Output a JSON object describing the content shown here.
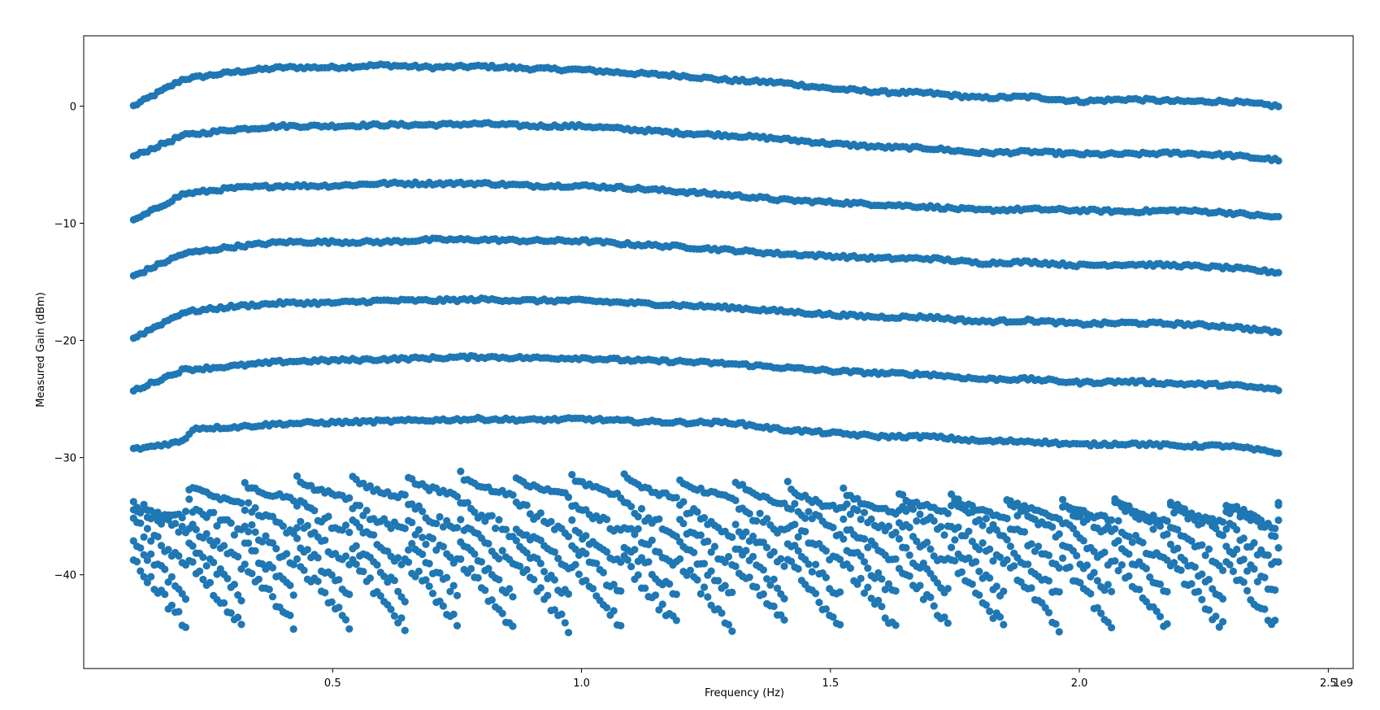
{
  "chart_data": {
    "type": "scatter",
    "title": "",
    "xlabel": "Frequency (Hz)",
    "ylabel": "Measured Gain (dBm)",
    "x_offset_label": "1e9",
    "xlim": [
      0.0,
      2.55
    ],
    "ylim": [
      -48.0,
      6.0
    ],
    "xticks": [
      0.5,
      1.0,
      1.5,
      2.0,
      2.5
    ],
    "xtick_labels": [
      "0.5",
      "1.0",
      "1.5",
      "2.0",
      "2.5"
    ],
    "yticks": [
      0,
      -10,
      -20,
      -30,
      -40
    ],
    "ytick_labels": [
      "0",
      "−10",
      "−20",
      "−30",
      "−40"
    ],
    "marker_color": "#1f77b4",
    "grid": false,
    "legend": "none",
    "x_range_ghz": [
      0.1,
      2.4
    ],
    "series": [
      {
        "values": [
          [
            0.1,
            0.0
          ],
          [
            0.2,
            2.3
          ],
          [
            0.3,
            2.9
          ],
          [
            0.4,
            3.3
          ],
          [
            0.5,
            3.3
          ],
          [
            0.6,
            3.5
          ],
          [
            0.7,
            3.3
          ],
          [
            0.8,
            3.4
          ],
          [
            0.9,
            3.2
          ],
          [
            1.0,
            3.1
          ],
          [
            1.1,
            2.8
          ],
          [
            1.2,
            2.6
          ],
          [
            1.3,
            2.2
          ],
          [
            1.4,
            2.0
          ],
          [
            1.5,
            1.5
          ],
          [
            1.6,
            1.2
          ],
          [
            1.7,
            1.1
          ],
          [
            1.8,
            0.7
          ],
          [
            1.9,
            0.8
          ],
          [
            2.0,
            0.4
          ],
          [
            2.1,
            0.6
          ],
          [
            2.2,
            0.4
          ],
          [
            2.3,
            0.4
          ],
          [
            2.4,
            0.0
          ]
        ]
      },
      {
        "values": [
          [
            0.1,
            -4.3
          ],
          [
            0.2,
            -2.5
          ],
          [
            0.3,
            -2.0
          ],
          [
            0.4,
            -1.7
          ],
          [
            0.5,
            -1.7
          ],
          [
            0.6,
            -1.6
          ],
          [
            0.7,
            -1.6
          ],
          [
            0.8,
            -1.5
          ],
          [
            0.9,
            -1.7
          ],
          [
            1.0,
            -1.7
          ],
          [
            1.1,
            -2.0
          ],
          [
            1.2,
            -2.3
          ],
          [
            1.3,
            -2.5
          ],
          [
            1.4,
            -2.8
          ],
          [
            1.5,
            -3.2
          ],
          [
            1.6,
            -3.5
          ],
          [
            1.7,
            -3.6
          ],
          [
            1.8,
            -4.0
          ],
          [
            1.9,
            -3.9
          ],
          [
            2.0,
            -4.1
          ],
          [
            2.1,
            -4.1
          ],
          [
            2.2,
            -4.0
          ],
          [
            2.3,
            -4.2
          ],
          [
            2.4,
            -4.6
          ]
        ]
      },
      {
        "values": [
          [
            0.1,
            -9.8
          ],
          [
            0.2,
            -7.5
          ],
          [
            0.3,
            -7.0
          ],
          [
            0.4,
            -6.8
          ],
          [
            0.5,
            -6.8
          ],
          [
            0.6,
            -6.6
          ],
          [
            0.7,
            -6.6
          ],
          [
            0.8,
            -6.6
          ],
          [
            0.9,
            -6.8
          ],
          [
            1.0,
            -6.8
          ],
          [
            1.1,
            -7.0
          ],
          [
            1.2,
            -7.3
          ],
          [
            1.3,
            -7.6
          ],
          [
            1.4,
            -8.0
          ],
          [
            1.5,
            -8.2
          ],
          [
            1.6,
            -8.4
          ],
          [
            1.7,
            -8.6
          ],
          [
            1.8,
            -8.9
          ],
          [
            1.9,
            -8.8
          ],
          [
            2.0,
            -8.9
          ],
          [
            2.1,
            -9.0
          ],
          [
            2.2,
            -8.9
          ],
          [
            2.3,
            -9.1
          ],
          [
            2.4,
            -9.5
          ]
        ]
      },
      {
        "values": [
          [
            0.1,
            -14.5
          ],
          [
            0.2,
            -12.6
          ],
          [
            0.3,
            -12.0
          ],
          [
            0.4,
            -11.6
          ],
          [
            0.5,
            -11.6
          ],
          [
            0.6,
            -11.6
          ],
          [
            0.7,
            -11.4
          ],
          [
            0.8,
            -11.4
          ],
          [
            0.9,
            -11.5
          ],
          [
            1.0,
            -11.5
          ],
          [
            1.1,
            -11.8
          ],
          [
            1.2,
            -12.0
          ],
          [
            1.3,
            -12.3
          ],
          [
            1.4,
            -12.6
          ],
          [
            1.5,
            -12.8
          ],
          [
            1.6,
            -13.0
          ],
          [
            1.7,
            -13.0
          ],
          [
            1.8,
            -13.4
          ],
          [
            1.9,
            -13.3
          ],
          [
            2.0,
            -13.6
          ],
          [
            2.1,
            -13.5
          ],
          [
            2.2,
            -13.6
          ],
          [
            2.3,
            -13.8
          ],
          [
            2.4,
            -14.2
          ]
        ]
      },
      {
        "values": [
          [
            0.1,
            -19.8
          ],
          [
            0.2,
            -17.6
          ],
          [
            0.3,
            -17.1
          ],
          [
            0.4,
            -16.8
          ],
          [
            0.5,
            -16.8
          ],
          [
            0.6,
            -16.6
          ],
          [
            0.7,
            -16.6
          ],
          [
            0.8,
            -16.5
          ],
          [
            0.9,
            -16.6
          ],
          [
            1.0,
            -16.6
          ],
          [
            1.1,
            -16.8
          ],
          [
            1.2,
            -17.0
          ],
          [
            1.3,
            -17.2
          ],
          [
            1.4,
            -17.5
          ],
          [
            1.5,
            -17.8
          ],
          [
            1.6,
            -18.0
          ],
          [
            1.7,
            -18.0
          ],
          [
            1.8,
            -18.4
          ],
          [
            1.9,
            -18.3
          ],
          [
            2.0,
            -18.6
          ],
          [
            2.1,
            -18.5
          ],
          [
            2.2,
            -18.6
          ],
          [
            2.3,
            -18.8
          ],
          [
            2.4,
            -19.3
          ]
        ]
      },
      {
        "values": [
          [
            0.1,
            -24.3
          ],
          [
            0.2,
            -22.5
          ],
          [
            0.3,
            -22.2
          ],
          [
            0.4,
            -21.8
          ],
          [
            0.5,
            -21.7
          ],
          [
            0.6,
            -21.6
          ],
          [
            0.7,
            -21.5
          ],
          [
            0.8,
            -21.4
          ],
          [
            0.9,
            -21.5
          ],
          [
            1.0,
            -21.5
          ],
          [
            1.1,
            -21.7
          ],
          [
            1.2,
            -21.8
          ],
          [
            1.3,
            -22.0
          ],
          [
            1.4,
            -22.3
          ],
          [
            1.5,
            -22.6
          ],
          [
            1.6,
            -22.8
          ],
          [
            1.7,
            -22.9
          ],
          [
            1.8,
            -23.3
          ],
          [
            1.9,
            -23.3
          ],
          [
            2.0,
            -23.6
          ],
          [
            2.1,
            -23.5
          ],
          [
            2.2,
            -23.7
          ],
          [
            2.3,
            -23.8
          ],
          [
            2.4,
            -24.2
          ]
        ]
      },
      {
        "values": [
          [
            0.1,
            -29.3
          ],
          [
            0.2,
            -28.6
          ],
          [
            0.22,
            -27.5
          ],
          [
            0.3,
            -27.4
          ],
          [
            0.4,
            -27.1
          ],
          [
            0.5,
            -27.0
          ],
          [
            0.6,
            -26.9
          ],
          [
            0.7,
            -26.8
          ],
          [
            0.8,
            -26.7
          ],
          [
            0.9,
            -26.8
          ],
          [
            1.0,
            -26.7
          ],
          [
            1.1,
            -26.9
          ],
          [
            1.2,
            -27.0
          ],
          [
            1.3,
            -27.0
          ],
          [
            1.4,
            -27.6
          ],
          [
            1.5,
            -27.9
          ],
          [
            1.6,
            -28.2
          ],
          [
            1.7,
            -28.2
          ],
          [
            1.8,
            -28.6
          ],
          [
            1.9,
            -28.6
          ],
          [
            2.0,
            -28.9
          ],
          [
            2.1,
            -28.8
          ],
          [
            2.2,
            -29.0
          ],
          [
            2.3,
            -29.0
          ],
          [
            2.4,
            -29.6
          ]
        ]
      }
    ],
    "spurious_cluster_note_only": ""
  }
}
